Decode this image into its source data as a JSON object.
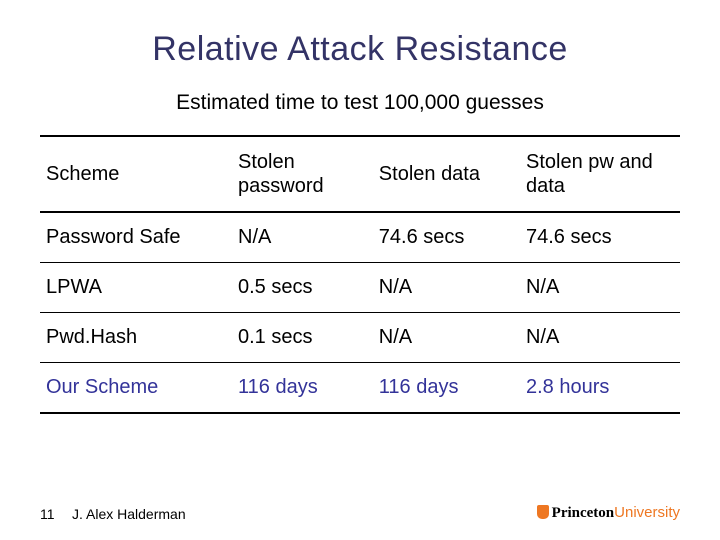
{
  "title": "Relative Attack Resistance",
  "subtitle": "Estimated time to test 100,000 guesses",
  "table": {
    "columns": [
      "Scheme",
      "Stolen password",
      "Stolen data",
      "Stolen pw and data"
    ],
    "rows": [
      {
        "cells": [
          "Password Safe",
          "N/A",
          "74.6 secs",
          "74.6 secs"
        ],
        "highlight": false
      },
      {
        "cells": [
          "LPWA",
          "0.5 secs",
          "N/A",
          "N/A"
        ],
        "highlight": false
      },
      {
        "cells": [
          "Pwd.Hash",
          "0.1 secs",
          "N/A",
          "N/A"
        ],
        "highlight": false
      },
      {
        "cells": [
          "Our Scheme",
          "116 days",
          "116 days",
          "2.8 hours"
        ],
        "highlight": true
      }
    ]
  },
  "footer": {
    "page": "11",
    "author": "J. Alex Halderman",
    "brand_bold": "Princeton",
    "brand_light": "University"
  },
  "colors": {
    "title": "#333366",
    "highlight": "#333399",
    "brand_orange": "#ee7722",
    "text": "#000000",
    "background": "#ffffff"
  }
}
